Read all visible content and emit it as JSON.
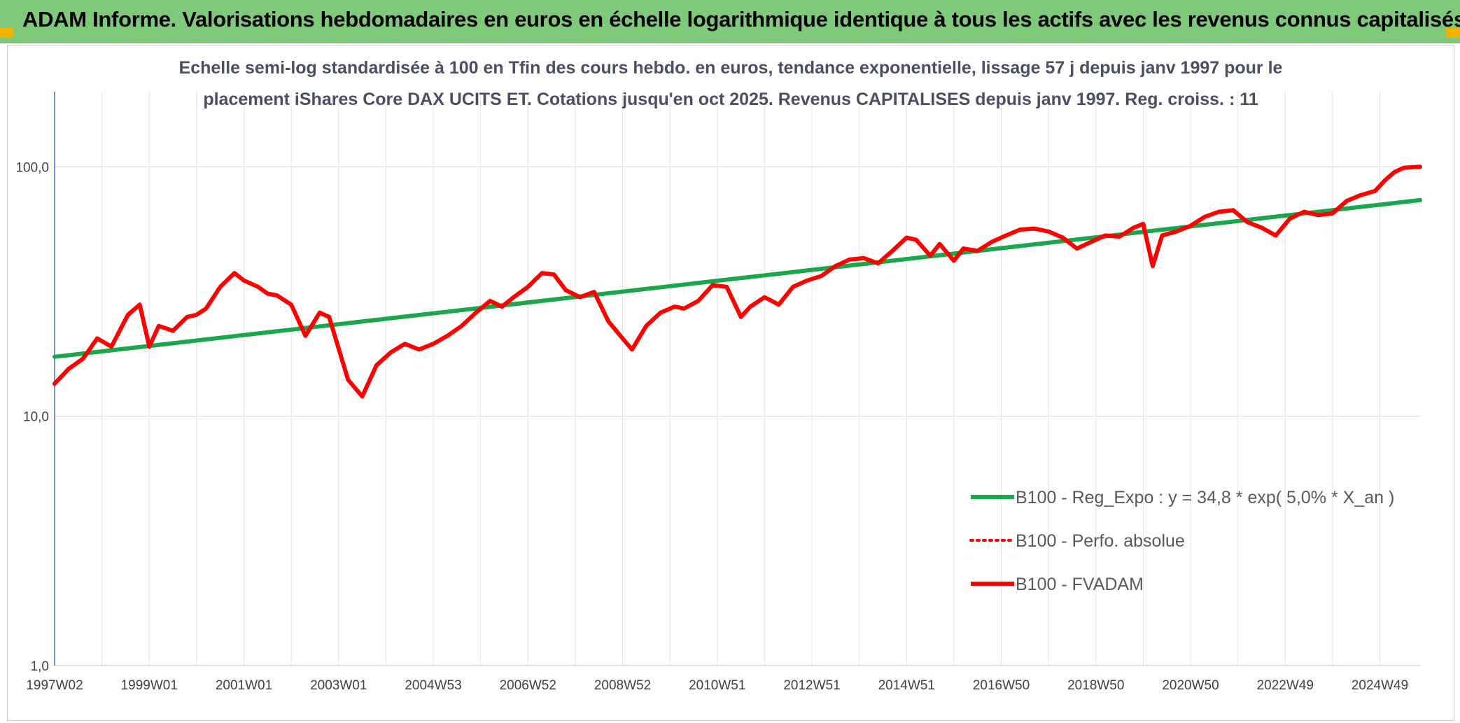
{
  "banner": {
    "title": "ADAM Informe. Valorisations hebdomadaires en euros en échelle logarithmique identique à tous les actifs avec les revenus connus capitalisés",
    "background_color": "#7ec97a"
  },
  "chart_data": {
    "type": "line",
    "subtitle_lines": [
      "Echelle semi-log standardisée à 100 en Tfin des cours hebdo. en euros, tendance exponentielle, lissage 57 j depuis janv 1997 pour le",
      "placement iShares Core DAX UCITS ET. Cotations jusqu'en oct 2025. Revenus CAPITALISES depuis janv 1997. Reg. croiss. : 11"
    ],
    "y_scale": "log",
    "ylim": [
      1,
      200
    ],
    "y_ticks": [
      "1,0",
      "10,0",
      "100,0"
    ],
    "y_tick_values": [
      1,
      10,
      100
    ],
    "xlim": [
      1997.0,
      2025.85
    ],
    "x_ticks": [
      "1997W02",
      "1999W01",
      "2001W01",
      "2003W01",
      "2004W53",
      "2006W52",
      "2008W52",
      "2010W51",
      "2012W51",
      "2014W51",
      "2016W50",
      "2018W50",
      "2020W50",
      "2022W49",
      "2024W49"
    ],
    "x_tick_values": [
      1997.0,
      1999.0,
      2001.0,
      2003.0,
      2005.0,
      2007.0,
      2009.0,
      2011.0,
      2013.0,
      2015.0,
      2017.0,
      2019.0,
      2021.0,
      2023.0,
      2025.0
    ],
    "grid": true,
    "legend_position": "lower-right",
    "series": [
      {
        "name": "B100 - Reg_Expo : y = 34,8 * exp( 5,0% *  X_an )",
        "color": "#1aa64b",
        "style": "solid",
        "x": [
          1997.0,
          2025.85
        ],
        "y": [
          17.3,
          73.5
        ]
      },
      {
        "name": "B100 - Perfo. absolue",
        "color": "#ff0000",
        "style": "dotted",
        "x": [],
        "y": []
      },
      {
        "name": "B100 - FVADAM",
        "color": "#ff0000",
        "style": "solid",
        "x": [
          1997.0,
          1997.3,
          1997.6,
          1997.9,
          1998.2,
          1998.55,
          1998.8,
          1999.0,
          1999.2,
          1999.5,
          1999.8,
          2000.0,
          2000.2,
          2000.5,
          2000.8,
          2001.0,
          2001.3,
          2001.5,
          2001.7,
          2002.0,
          2002.3,
          2002.6,
          2002.8,
          2003.2,
          2003.5,
          2003.8,
          2004.1,
          2004.4,
          2004.7,
          2005.0,
          2005.3,
          2005.6,
          2005.9,
          2006.2,
          2006.45,
          2006.7,
          2007.0,
          2007.3,
          2007.55,
          2007.8,
          2008.1,
          2008.4,
          2008.7,
          2009.0,
          2009.2,
          2009.5,
          2009.8,
          2010.1,
          2010.3,
          2010.6,
          2010.9,
          2011.2,
          2011.5,
          2011.7,
          2012.0,
          2012.3,
          2012.6,
          2012.9,
          2013.2,
          2013.5,
          2013.8,
          2014.1,
          2014.4,
          2014.7,
          2015.0,
          2015.2,
          2015.5,
          2015.7,
          2016.0,
          2016.2,
          2016.5,
          2016.8,
          2017.1,
          2017.4,
          2017.7,
          2018.0,
          2018.3,
          2018.6,
          2018.9,
          2019.2,
          2019.5,
          2019.8,
          2020.0,
          2020.2,
          2020.4,
          2020.7,
          2021.0,
          2021.3,
          2021.6,
          2021.9,
          2022.2,
          2022.5,
          2022.8,
          2023.1,
          2023.4,
          2023.7,
          2024.0,
          2024.3,
          2024.6,
          2024.9,
          2025.1,
          2025.3,
          2025.5,
          2025.85
        ],
        "y": [
          13.5,
          15.5,
          17.0,
          20.5,
          19.0,
          25.5,
          28.0,
          19.0,
          23.0,
          22.0,
          25.0,
          25.5,
          27.0,
          33.0,
          37.5,
          35.0,
          33.0,
          31.0,
          30.5,
          28.0,
          21.0,
          26.0,
          25.0,
          14.0,
          12.0,
          16.0,
          18.0,
          19.5,
          18.5,
          19.5,
          21.0,
          23.0,
          26.0,
          29.0,
          27.5,
          30.0,
          33.0,
          37.5,
          37.0,
          32.0,
          30.0,
          31.5,
          24.0,
          20.5,
          18.5,
          23.0,
          26.0,
          27.5,
          27.0,
          29.0,
          33.5,
          33.0,
          25.0,
          27.5,
          30.0,
          28.0,
          33.0,
          35.0,
          36.5,
          40.0,
          42.5,
          43.0,
          41.0,
          46.0,
          52.0,
          51.0,
          44.0,
          49.0,
          42.0,
          47.0,
          46.0,
          50.0,
          53.0,
          56.0,
          56.5,
          55.0,
          52.0,
          47.0,
          50.0,
          53.0,
          52.5,
          57.0,
          59.0,
          40.0,
          53.0,
          55.0,
          58.0,
          63.0,
          66.0,
          67.0,
          60.0,
          57.0,
          53.0,
          62.0,
          66.0,
          64.0,
          65.0,
          73.0,
          77.0,
          80.0,
          88.0,
          95.0,
          99.0,
          100.0
        ]
      }
    ]
  }
}
